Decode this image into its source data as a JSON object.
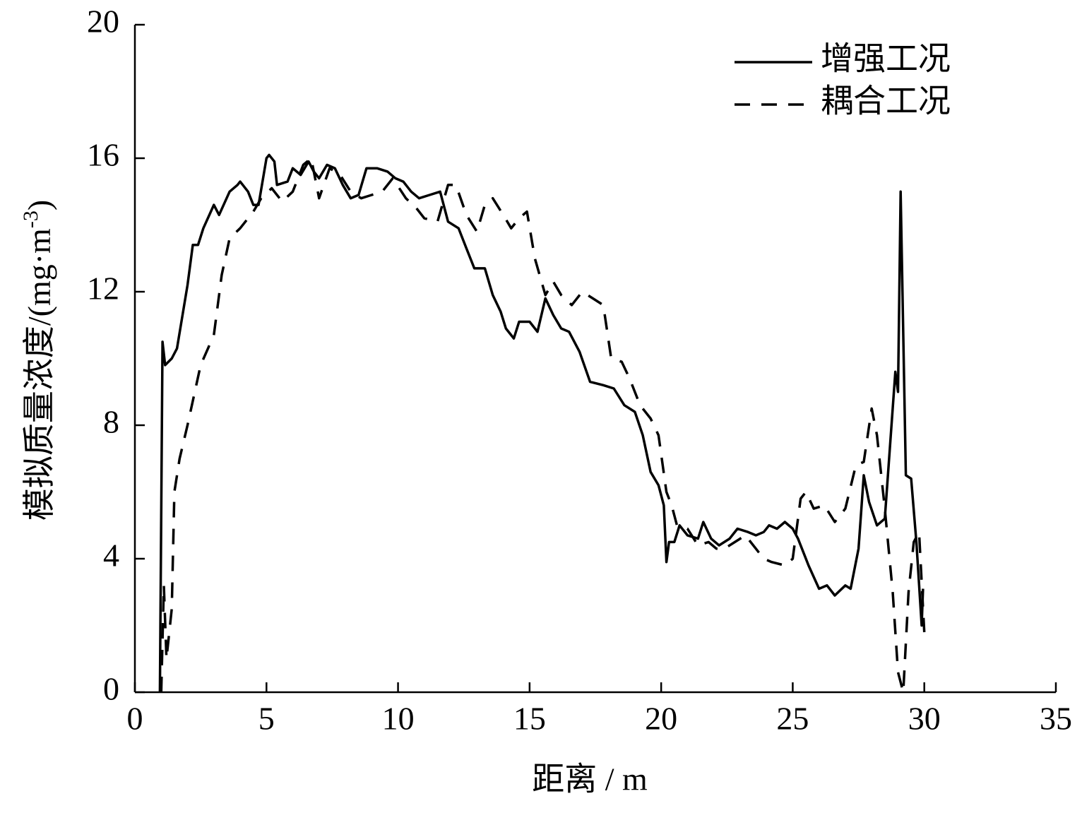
{
  "chart_data": {
    "type": "line",
    "xlabel": "距离 / m",
    "ylabel": "模拟质量浓度/(mg·m",
    "ylabel_sup": "-3",
    "ylabel_end": ")",
    "xlim": [
      0,
      35
    ],
    "xticks": [
      0,
      5,
      10,
      15,
      20,
      25,
      30,
      35
    ],
    "ylim": [
      0,
      20
    ],
    "yticks": [
      0,
      4,
      8,
      12,
      16,
      20
    ],
    "legend": "upper-right",
    "series": [
      {
        "name": "增强工况",
        "color": "#000000",
        "dash": "solid",
        "x": [
          0.95,
          1.05,
          1.15,
          1.4,
          1.6,
          2.0,
          2.2,
          2.4,
          2.6,
          3.0,
          3.2,
          3.6,
          3.9,
          4.0,
          4.3,
          4.5,
          4.7,
          5.0,
          5.1,
          5.3,
          5.4,
          5.8,
          6.0,
          6.3,
          6.6,
          6.8,
          7.0,
          7.3,
          7.6,
          7.9,
          8.2,
          8.5,
          8.8,
          9.2,
          9.6,
          9.9,
          10.2,
          10.5,
          10.8,
          11.2,
          11.6,
          11.9,
          12.3,
          12.6,
          12.9,
          13.3,
          13.6,
          13.9,
          14.1,
          14.4,
          14.6,
          15.0,
          15.3,
          15.6,
          15.9,
          16.2,
          16.5,
          16.9,
          17.3,
          17.8,
          18.2,
          18.6,
          19.0,
          19.3,
          19.6,
          19.9,
          20.1,
          20.2,
          20.3,
          20.5,
          20.7,
          21.0,
          21.4,
          21.6,
          21.9,
          22.2,
          22.6,
          22.9,
          23.3,
          23.6,
          23.9,
          24.1,
          24.4,
          24.7,
          25.0,
          25.2,
          25.6,
          26.0,
          26.3,
          26.6,
          27.0,
          27.2,
          27.5,
          27.7,
          27.9,
          28.2,
          28.5,
          28.9,
          29.0,
          29.1,
          29.3,
          29.5,
          29.7,
          29.9,
          29.95
        ],
        "values": [
          0,
          10.5,
          9.8,
          10,
          10.3,
          12.2,
          13.4,
          13.4,
          13.9,
          14.6,
          14.3,
          15.0,
          15.2,
          15.3,
          15.0,
          14.6,
          14.6,
          16.0,
          16.1,
          15.9,
          15.2,
          15.3,
          15.7,
          15.5,
          15.9,
          15.6,
          15.4,
          15.8,
          15.7,
          15.2,
          14.8,
          14.9,
          15.7,
          15.7,
          15.6,
          15.4,
          15.3,
          15.0,
          14.8,
          14.9,
          15.0,
          14.1,
          13.9,
          13.3,
          12.7,
          12.7,
          11.9,
          11.4,
          10.9,
          10.6,
          11.1,
          11.1,
          10.8,
          11.8,
          11.3,
          10.9,
          10.8,
          10.2,
          9.3,
          9.2,
          9.1,
          8.6,
          8.4,
          7.7,
          6.6,
          6.2,
          5.6,
          3.9,
          4.5,
          4.5,
          5.0,
          4.7,
          4.6,
          5.1,
          4.6,
          4.4,
          4.6,
          4.9,
          4.8,
          4.7,
          4.8,
          5.0,
          4.9,
          5.1,
          4.9,
          4.6,
          3.8,
          3.1,
          3.2,
          2.9,
          3.2,
          3.1,
          4.3,
          6.5,
          5.7,
          5.0,
          5.2,
          9.6,
          9.0,
          15.0,
          6.5,
          6.4,
          4.5,
          2.0,
          3.1
        ]
      },
      {
        "name": "耦合工况",
        "color": "#000000",
        "dash": "dashed",
        "x": [
          1.0,
          1.1,
          1.2,
          1.4,
          1.5,
          1.7,
          2.0,
          2.5,
          3.0,
          3.3,
          3.6,
          4.0,
          4.5,
          4.8,
          5.2,
          5.6,
          6.0,
          6.4,
          6.7,
          7.0,
          7.4,
          7.8,
          8.2,
          8.6,
          9.0,
          9.4,
          9.8,
          10.3,
          10.7,
          11.0,
          11.5,
          11.9,
          12.2,
          12.6,
          13.0,
          13.3,
          13.6,
          14.0,
          14.3,
          14.6,
          14.9,
          15.2,
          15.6,
          15.9,
          16.2,
          16.6,
          17.0,
          17.4,
          17.8,
          18.1,
          18.5,
          18.8,
          19.2,
          19.6,
          19.9,
          20.2,
          20.4,
          20.6,
          21.0,
          21.4,
          21.8,
          22.1,
          22.4,
          22.8,
          23.2,
          23.6,
          23.9,
          24.2,
          24.7,
          25.0,
          25.3,
          25.5,
          25.8,
          26.2,
          26.6,
          27.0,
          27.4,
          27.7,
          28.0,
          28.2,
          28.5,
          28.8,
          29.0,
          29.2,
          29.4,
          29.6,
          29.8,
          30.0
        ],
        "values": [
          0,
          3.2,
          1.0,
          2.5,
          6.0,
          7.0,
          8.0,
          9.8,
          10.7,
          12.5,
          13.6,
          13.9,
          14.4,
          14.8,
          15.1,
          14.7,
          15.0,
          15.8,
          16.0,
          14.8,
          15.7,
          15.5,
          15.0,
          14.8,
          14.9,
          15.0,
          15.4,
          14.8,
          14.5,
          14.2,
          14.1,
          15.2,
          15.2,
          14.3,
          13.8,
          14.6,
          14.8,
          14.3,
          13.9,
          14.2,
          14.4,
          13.0,
          11.9,
          12.3,
          11.9,
          11.6,
          12.0,
          11.8,
          11.6,
          10.0,
          9.9,
          9.4,
          8.6,
          8.2,
          7.7,
          6.0,
          5.6,
          5.0,
          4.9,
          4.4,
          4.5,
          4.3,
          4.3,
          4.5,
          4.7,
          4.3,
          4.0,
          3.9,
          3.8,
          4.0,
          5.8,
          6.0,
          5.5,
          5.6,
          5.1,
          5.5,
          6.8,
          6.9,
          8.5,
          7.7,
          5.5,
          3.0,
          0.6,
          0,
          3.0,
          4.5,
          4.8,
          1.8
        ]
      }
    ]
  }
}
